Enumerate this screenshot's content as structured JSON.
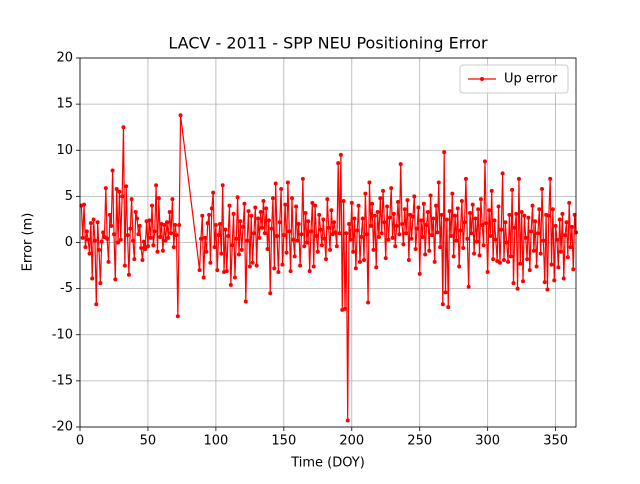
{
  "chart_data": {
    "type": "line",
    "title": "LACV - 2011 - SPP NEU Positioning Error",
    "x_label": "Time (DOY)",
    "y_label": "Error (m)",
    "xlim": [
      0,
      365
    ],
    "xticks": [
      0,
      50,
      100,
      150,
      200,
      250,
      300,
      350
    ],
    "ylim": [
      -20,
      20
    ],
    "yticks": [
      -20,
      -15,
      -10,
      -5,
      0,
      5,
      10,
      15,
      20
    ],
    "grid": true,
    "legend": "upper right",
    "x": [
      1,
      2,
      3,
      4,
      5,
      6,
      7,
      8,
      9,
      10,
      11,
      12,
      13,
      14,
      15,
      16,
      17,
      18,
      19,
      20,
      21,
      22,
      23,
      24,
      25,
      26,
      27,
      28,
      29,
      30,
      31,
      32,
      33,
      34,
      35,
      36,
      37,
      38,
      39,
      40,
      41,
      42,
      43,
      44,
      45,
      46,
      47,
      48,
      49,
      50,
      51,
      52,
      53,
      54,
      55,
      56,
      57,
      58,
      59,
      60,
      61,
      62,
      63,
      64,
      65,
      66,
      67,
      68,
      69,
      70,
      71,
      72,
      73,
      74,
      88,
      89,
      90,
      91,
      92,
      93,
      94,
      95,
      96,
      97,
      98,
      99,
      100,
      101,
      102,
      103,
      104,
      105,
      106,
      107,
      108,
      109,
      110,
      111,
      112,
      113,
      114,
      115,
      116,
      117,
      118,
      119,
      120,
      121,
      122,
      123,
      124,
      125,
      126,
      127,
      128,
      129,
      130,
      131,
      132,
      133,
      134,
      135,
      136,
      137,
      138,
      139,
      140,
      141,
      142,
      143,
      144,
      145,
      146,
      147,
      148,
      149,
      150,
      151,
      152,
      153,
      154,
      155,
      156,
      157,
      158,
      159,
      160,
      161,
      162,
      163,
      164,
      165,
      166,
      167,
      168,
      169,
      170,
      171,
      172,
      173,
      174,
      175,
      176,
      177,
      178,
      179,
      180,
      181,
      182,
      183,
      184,
      185,
      186,
      187,
      188,
      189,
      190,
      191,
      192,
      193,
      194,
      195,
      196,
      197,
      198,
      199,
      200,
      201,
      202,
      203,
      204,
      205,
      206,
      207,
      208,
      209,
      210,
      211,
      212,
      213,
      214,
      215,
      216,
      217,
      218,
      219,
      220,
      221,
      222,
      223,
      224,
      225,
      226,
      227,
      228,
      229,
      230,
      231,
      232,
      233,
      234,
      235,
      236,
      237,
      238,
      239,
      240,
      241,
      242,
      243,
      244,
      245,
      246,
      247,
      248,
      249,
      250,
      251,
      252,
      253,
      254,
      255,
      256,
      257,
      258,
      259,
      260,
      261,
      262,
      263,
      264,
      265,
      266,
      267,
      268,
      269,
      270,
      271,
      272,
      273,
      274,
      275,
      276,
      277,
      278,
      279,
      280,
      281,
      282,
      283,
      284,
      285,
      286,
      287,
      288,
      289,
      290,
      291,
      292,
      293,
      294,
      295,
      296,
      297,
      298,
      299,
      300,
      301,
      302,
      303,
      304,
      305,
      306,
      307,
      308,
      309,
      310,
      311,
      312,
      313,
      314,
      315,
      316,
      317,
      318,
      319,
      320,
      321,
      322,
      323,
      324,
      325,
      326,
      327,
      328,
      329,
      330,
      331,
      332,
      333,
      334,
      335,
      336,
      337,
      338,
      339,
      340,
      341,
      342,
      343,
      344,
      345,
      346,
      347,
      348,
      349,
      350,
      351,
      352,
      353,
      354,
      355,
      356,
      357,
      358,
      359,
      360,
      361,
      362,
      363,
      364,
      365
    ],
    "series": [
      {
        "name": "Up error",
        "color": "#ff0000",
        "values": [
          4.0,
          0.5,
          4.1,
          -0.5,
          1.2,
          0.3,
          -1.2,
          2.1,
          -3.9,
          2.5,
          0.2,
          -6.7,
          2.2,
          -0.8,
          -4.4,
          0.1,
          1.1,
          0.6,
          5.9,
          0.4,
          -2.1,
          3.0,
          1.8,
          7.8,
          0.9,
          -4.0,
          5.8,
          0.0,
          5.5,
          0.3,
          5.0,
          12.5,
          -2.5,
          6.1,
          0.8,
          -3.5,
          1.5,
          4.7,
          0.2,
          -1.8,
          3.3,
          2.6,
          0.9,
          1.8,
          -0.6,
          -1.9,
          0.1,
          -0.7,
          2.3,
          -0.4,
          2.4,
          0.5,
          4.0,
          -0.3,
          1.2,
          6.2,
          -1.0,
          4.8,
          0.6,
          2.0,
          -0.9,
          1.9,
          0.2,
          2.2,
          0.5,
          3.3,
          1.0,
          4.7,
          -0.5,
          1.9,
          0.8,
          -8.0,
          1.9,
          13.8,
          -3.0,
          0.4,
          2.9,
          -3.8,
          0.5,
          -1.0,
          2.1,
          3.0,
          -2.2,
          3.7,
          5.4,
          -0.5,
          1.9,
          -3.0,
          0.8,
          2.0,
          -1.2,
          6.2,
          -3.2,
          1.4,
          -3.1,
          0.7,
          4.0,
          -4.6,
          -0.3,
          3.1,
          -3.8,
          0.4,
          4.9,
          -1.3,
          2.3,
          -0.8,
          1.7,
          4.2,
          -6.4,
          0.2,
          3.4,
          -2.6,
          2.9,
          -2.2,
          1.0,
          3.8,
          -2.5,
          2.6,
          0.5,
          3.3,
          1.6,
          4.5,
          1.0,
          3.7,
          -0.7,
          2.4,
          -5.5,
          1.5,
          4.8,
          -2.8,
          6.4,
          0.7,
          -3.2,
          2.2,
          5.8,
          -2.4,
          0.8,
          4.1,
          -1.1,
          6.5,
          1.2,
          -3.1,
          4.8,
          0.3,
          -1.5,
          3.9,
          0.2,
          2.0,
          -2.5,
          0.9,
          6.9,
          -0.4,
          3.2,
          0.0,
          2.3,
          -3.1,
          1.2,
          4.3,
          -2.6,
          4.0,
          0.7,
          -1.0,
          3.0,
          1.4,
          -0.3,
          2.5,
          0.4,
          -1.8,
          4.7,
          1.6,
          -0.8,
          3.5,
          0.9,
          2.2,
          1.1,
          -0.4,
          8.6,
          1.0,
          9.5,
          -7.3,
          4.5,
          -7.2,
          1.0,
          -19.3,
          2.0,
          0.3,
          4.3,
          -1.0,
          2.6,
          -2.8,
          1.3,
          4.0,
          -2.1,
          0.6,
          2.6,
          -1.9,
          5.3,
          0.9,
          -6.5,
          6.5,
          1.8,
          4.2,
          -0.8,
          2.9,
          -2.7,
          3.3,
          0.6,
          4.8,
          1.0,
          5.6,
          2.2,
          -1.7,
          3.9,
          0.3,
          2.7,
          5.9,
          0.5,
          3.1,
          -0.4,
          1.8,
          4.4,
          0.9,
          8.5,
          2.0,
          -0.2,
          3.6,
          1.0,
          4.6,
          -1.9,
          3.0,
          0.4,
          2.8,
          5.0,
          -0.7,
          1.5,
          3.8,
          -3.4,
          2.4,
          0.6,
          4.2,
          -1.3,
          1.9,
          3.3,
          -0.9,
          5.1,
          0.8,
          2.6,
          -2.1,
          4.0,
          1.1,
          6.5,
          -0.5,
          3.0,
          -6.7,
          9.8,
          -5.4,
          2.5,
          -7.0,
          3.4,
          0.7,
          5.3,
          -1.5,
          2.9,
          0.2,
          3.7,
          -2.6,
          1.3,
          4.5,
          -0.6,
          2.2,
          6.9,
          0.4,
          -4.8,
          3.2,
          1.0,
          4.1,
          -1.2,
          2.6,
          0.1,
          3.6,
          -1.4,
          4.7,
          1.9,
          -0.3,
          8.8,
          2.1,
          -3.2,
          3.5,
          0.7,
          5.6,
          -1.8,
          2.4,
          0.3,
          -2.0,
          3.9,
          -2.2,
          1.4,
          7.5,
          -1.9,
          2.2,
          0.0,
          -2.1,
          3.0,
          -1.5,
          5.7,
          -4.4,
          1.6,
          3.1,
          -5.0,
          6.9,
          -2.3,
          3.3,
          -4.2,
          2.9,
          0.5,
          -1.8,
          2.7,
          -3.0,
          1.2,
          4.0,
          -0.9,
          2.3,
          -2.6,
          1.0,
          3.6,
          -1.2,
          5.8,
          0.2,
          -4.3,
          3.0,
          -5.1,
          2.9,
          6.9,
          -2.4,
          3.6,
          -4.1,
          1.8,
          0.3,
          -2.7,
          2.5,
          -1.0,
          3.1,
          -3.9,
          0.8,
          2.2,
          -1.6,
          4.3,
          -0.5,
          1.7,
          -2.9,
          3.0,
          1.1
        ]
      }
    ]
  }
}
